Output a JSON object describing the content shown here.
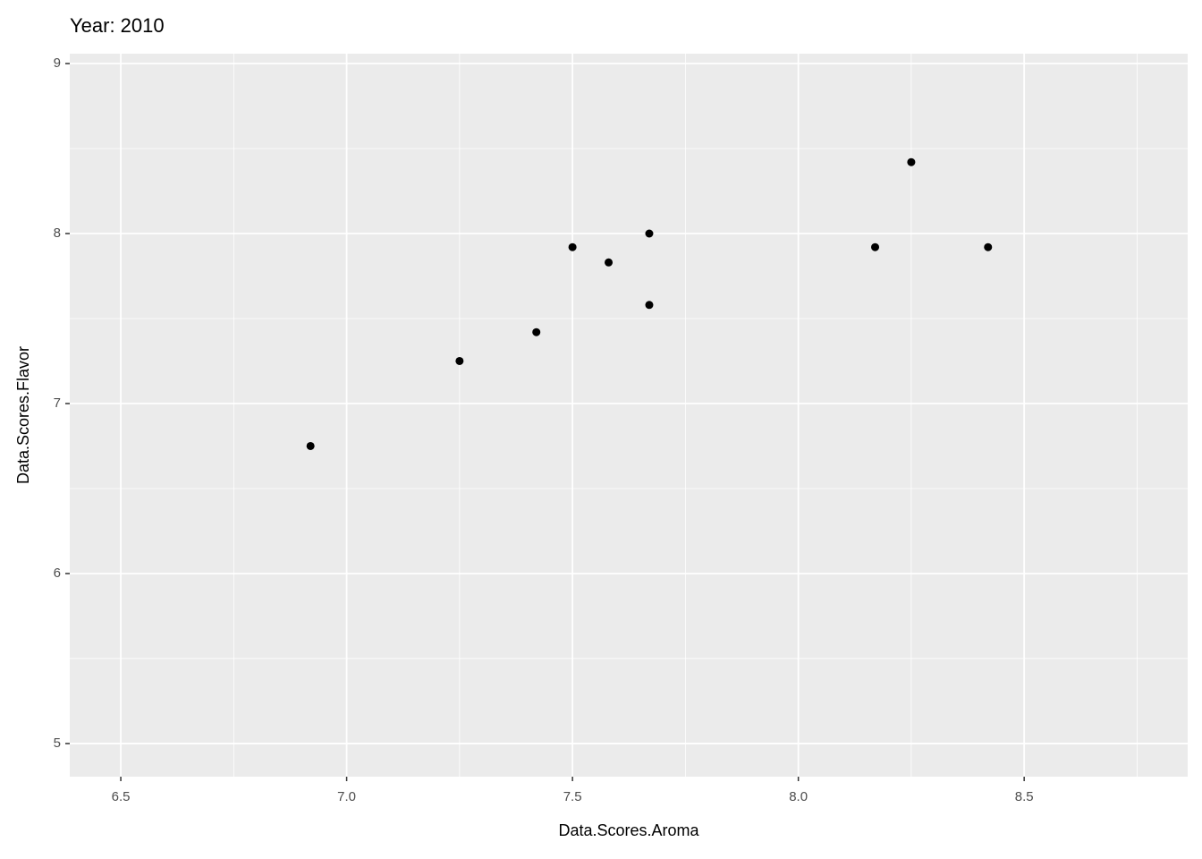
{
  "chart_data": {
    "type": "scatter",
    "title": "Year: 2010",
    "x_label": "Data.Scores.Aroma",
    "y_label": "Data.Scores.Flavor",
    "x": [
      6.92,
      7.25,
      7.42,
      7.5,
      7.58,
      7.67,
      7.67,
      8.17,
      8.25,
      8.42
    ],
    "values": [
      6.75,
      7.25,
      7.42,
      7.92,
      7.83,
      8.0,
      7.58,
      7.92,
      8.42,
      7.92
    ],
    "color": "#000000",
    "xlim": [
      6.387,
      8.862
    ],
    "ylim": [
      4.805,
      9.058
    ],
    "xticks": [
      6.5,
      {
        "value": 7.0,
        "label": "7.0"
      },
      7.5,
      {
        "value": 8.0,
        "label": "8.0"
      },
      8.5
    ],
    "yticks": [
      5,
      6,
      7,
      8,
      9
    ],
    "grid": true
  }
}
